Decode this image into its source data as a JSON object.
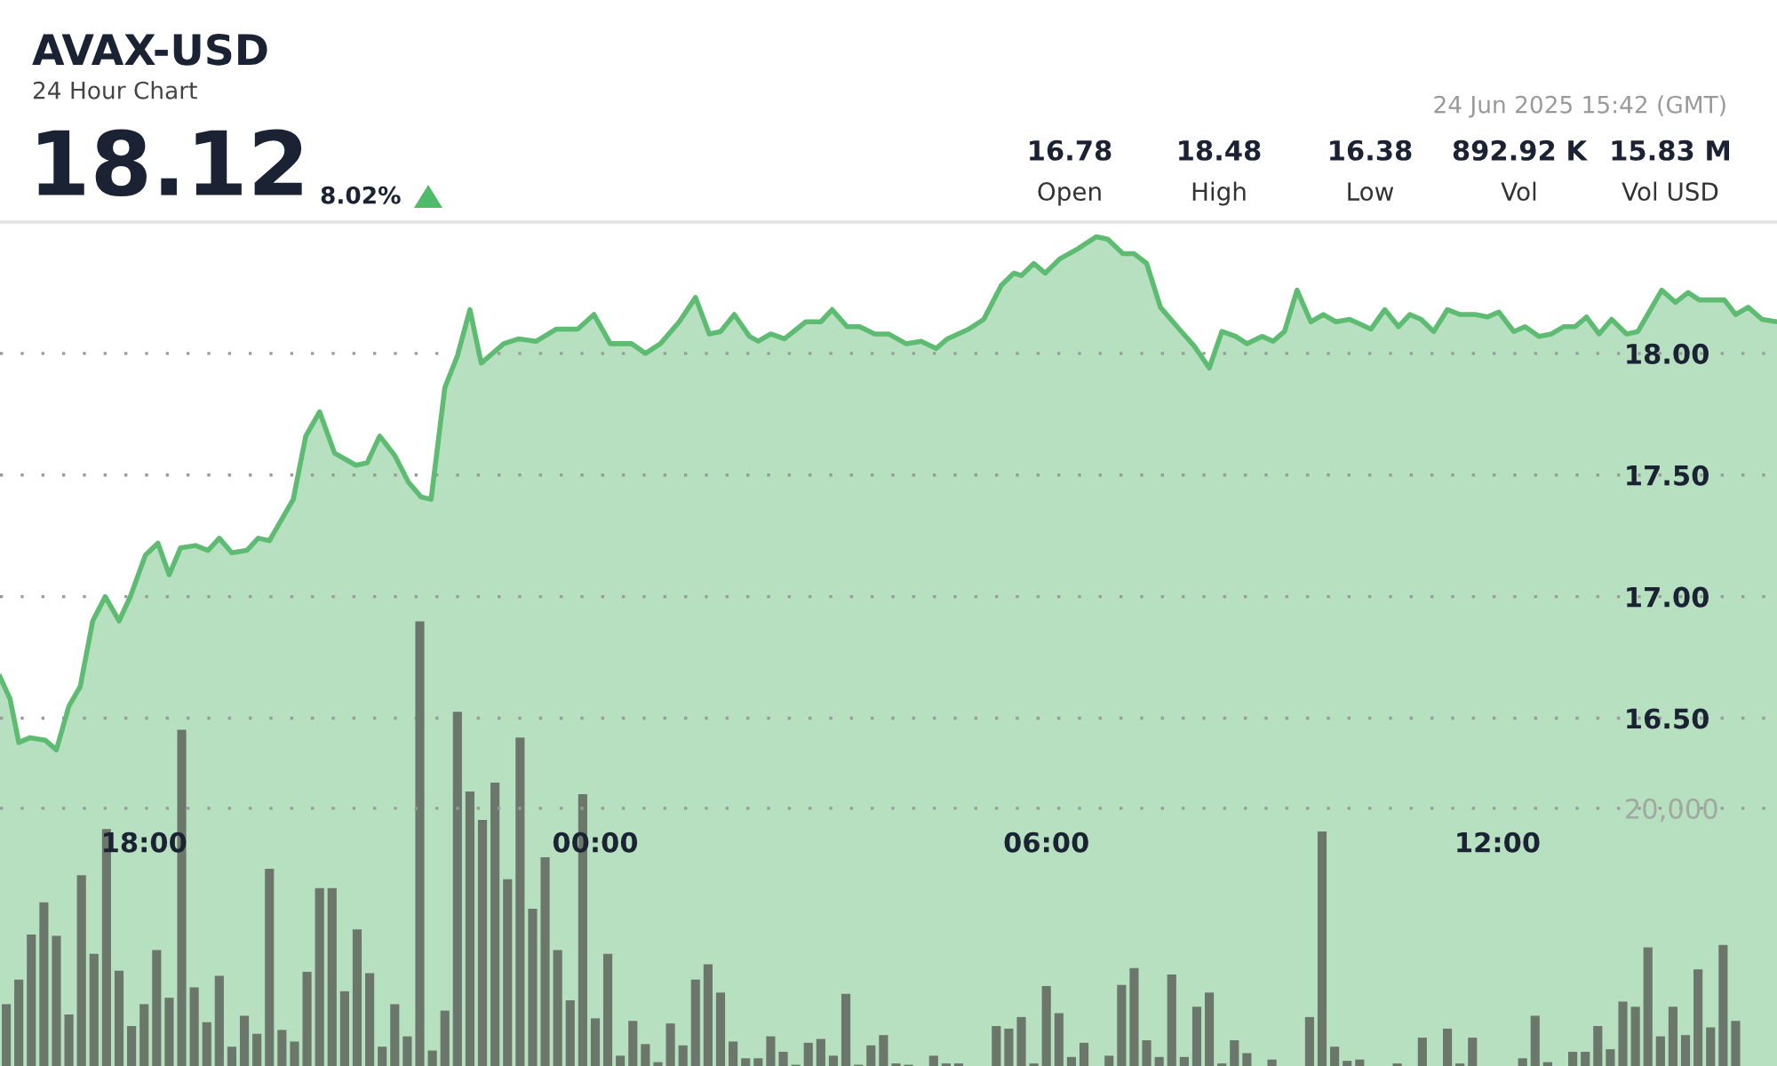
{
  "chart_data": {
    "type": "area",
    "title": "AVAX-USD",
    "subtitle": "24 Hour Chart",
    "annotations": [
      "18.12",
      "8.02%",
      "24 Jun 2025 15:42 (GMT)",
      "16.78",
      "Open",
      "18.48",
      "High",
      "16.38",
      "Low",
      "892.92 K",
      "Vol",
      "15.83 M",
      "Vol USD"
    ],
    "xlim": [
      "2025-06-23T16:05",
      "2025-06-24T15:43"
    ],
    "xticks": [
      {
        "value": "2025-06-23T18:00",
        "label": "18:00"
      },
      {
        "value": "2025-06-24T00:00",
        "label": "00:00"
      },
      {
        "value": "2025-06-24T06:00",
        "label": "06:00"
      },
      {
        "value": "2025-06-24T12:00",
        "label": "12:00"
      }
    ],
    "ylim": [
      15.07,
      18.54
    ],
    "yticks": [
      {
        "value": 16.5,
        "label": "16.50"
      },
      {
        "value": 17,
        "label": "17.00"
      },
      {
        "value": 17.5,
        "label": "17.50"
      },
      {
        "value": 18,
        "label": "18.00"
      }
    ],
    "y2lim": [
      0,
      65500
    ],
    "y2ticks": [
      {
        "value": 20000,
        "label": "20,000"
      }
    ],
    "grid": "y",
    "series": [
      {
        "color": "#5dbb72",
        "x": [
          "2025-06-23T16:05",
          "2025-06-23T16:13",
          "2025-06-23T16:20",
          "2025-06-23T16:29",
          "2025-06-23T16:41",
          "2025-06-23T16:50",
          "2025-06-23T17:00",
          "2025-06-23T17:09",
          "2025-06-23T17:19",
          "2025-06-23T17:29",
          "2025-06-23T17:40",
          "2025-06-23T17:49",
          "2025-06-23T18:01",
          "2025-06-23T18:11",
          "2025-06-23T18:20",
          "2025-06-23T18:29",
          "2025-06-23T18:41",
          "2025-06-23T18:51",
          "2025-06-23T19:00",
          "2025-06-23T19:10",
          "2025-06-23T19:22",
          "2025-06-23T19:31",
          "2025-06-23T19:40",
          "2025-06-23T19:50",
          "2025-06-23T19:59",
          "2025-06-23T20:09",
          "2025-06-23T20:20",
          "2025-06-23T20:32",
          "2025-06-23T20:49",
          "2025-06-23T20:58",
          "2025-06-23T21:08",
          "2025-06-23T21:20",
          "2025-06-23T21:31",
          "2025-06-23T21:41",
          "2025-06-23T21:49",
          "2025-06-23T22:00",
          "2025-06-23T22:10",
          "2025-06-23T22:20",
          "2025-06-23T22:29",
          "2025-06-23T22:47",
          "2025-06-23T22:59",
          "2025-06-23T23:13",
          "2025-06-23T23:29",
          "2025-06-23T23:46",
          "2025-06-23T23:59",
          "2025-06-24T00:12",
          "2025-06-24T00:29",
          "2025-06-24T00:40",
          "2025-06-24T00:52",
          "2025-06-24T01:07",
          "2025-06-24T01:20",
          "2025-06-24T01:31",
          "2025-06-24T01:40",
          "2025-06-24T01:51",
          "2025-06-24T02:03",
          "2025-06-24T02:10",
          "2025-06-24T02:20",
          "2025-06-24T02:31",
          "2025-06-24T02:48",
          "2025-06-24T03:00",
          "2025-06-24T03:09",
          "2025-06-24T03:21",
          "2025-06-24T03:31",
          "2025-06-24T03:43",
          "2025-06-24T03:54",
          "2025-06-24T04:08",
          "2025-06-24T04:20",
          "2025-06-24T04:32",
          "2025-06-24T04:41",
          "2025-06-24T04:58",
          "2025-06-24T05:10",
          "2025-06-24T05:24",
          "2025-06-24T05:34",
          "2025-06-24T05:40",
          "2025-06-24T05:50",
          "2025-06-24T05:59",
          "2025-06-24T06:11",
          "2025-06-24T06:25",
          "2025-06-24T06:40",
          "2025-06-24T06:49",
          "2025-06-24T07:01",
          "2025-06-24T07:10",
          "2025-06-24T07:20",
          "2025-06-24T07:31",
          "2025-06-24T07:46",
          "2025-06-24T07:58",
          "2025-06-24T08:10",
          "2025-06-24T08:20",
          "2025-06-24T08:31",
          "2025-06-24T08:40",
          "2025-06-24T08:52",
          "2025-06-24T09:01",
          "2025-06-24T09:10",
          "2025-06-24T09:20",
          "2025-06-24T09:31",
          "2025-06-24T09:41",
          "2025-06-24T09:51",
          "2025-06-24T10:02",
          "2025-06-24T10:19",
          "2025-06-24T10:30",
          "2025-06-24T10:41",
          "2025-06-24T10:50",
          "2025-06-24T10:59",
          "2025-06-24T11:09",
          "2025-06-24T11:20",
          "2025-06-24T11:30",
          "2025-06-24T11:42",
          "2025-06-24T11:52",
          "2025-06-24T12:01",
          "2025-06-24T12:13",
          "2025-06-24T12:22",
          "2025-06-24T12:33",
          "2025-06-24T12:43",
          "2025-06-24T12:53",
          "2025-06-24T13:02",
          "2025-06-24T13:11",
          "2025-06-24T13:21",
          "2025-06-24T13:31",
          "2025-06-24T13:43",
          "2025-06-24T13:52",
          "2025-06-24T14:11",
          "2025-06-24T14:22",
          "2025-06-24T14:32",
          "2025-06-24T14:41",
          "2025-06-24T15:01",
          "2025-06-24T15:10",
          "2025-06-24T15:20",
          "2025-06-24T15:31",
          "2025-06-24T15:43"
        ],
        "values": [
          16.67,
          16.58,
          16.4,
          16.42,
          16.41,
          16.37,
          16.55,
          16.63,
          16.9,
          17.0,
          16.9,
          17.0,
          17.17,
          17.22,
          17.09,
          17.2,
          17.21,
          17.19,
          17.24,
          17.18,
          17.19,
          17.24,
          17.23,
          17.32,
          17.4,
          17.66,
          17.76,
          17.59,
          17.54,
          17.55,
          17.66,
          17.58,
          17.47,
          17.41,
          17.4,
          17.86,
          17.99,
          18.18,
          17.96,
          18.04,
          18.06,
          18.05,
          18.1,
          18.1,
          18.16,
          18.04,
          18.04,
          18.0,
          18.04,
          18.13,
          18.23,
          18.08,
          18.09,
          18.16,
          18.07,
          18.05,
          18.08,
          18.06,
          18.13,
          18.13,
          18.18,
          18.11,
          18.11,
          18.08,
          18.08,
          18.04,
          18.05,
          18.02,
          18.06,
          18.1,
          18.14,
          18.28,
          18.33,
          18.32,
          18.37,
          18.33,
          18.39,
          18.43,
          18.48,
          18.47,
          18.41,
          18.41,
          18.37,
          18.19,
          18.1,
          18.03,
          17.94,
          18.09,
          18.07,
          18.04,
          18.07,
          18.05,
          18.09,
          18.26,
          18.13,
          18.16,
          18.13,
          18.14,
          18.1,
          18.18,
          18.11,
          18.16,
          18.14,
          18.09,
          18.18,
          18.16,
          18.16,
          18.15,
          18.17,
          18.09,
          18.11,
          18.07,
          18.08,
          18.11,
          18.11,
          18.15,
          18.08,
          18.14,
          18.08,
          18.09,
          18.26,
          18.21,
          18.25,
          18.22,
          18.22,
          18.16,
          18.19,
          18.14,
          18.13
        ]
      },
      {
        "type": "bar",
        "axis": "y2",
        "color": "#6b776b",
        "x": [
          "2025-06-23T16:10",
          "2025-06-23T16:20",
          "2025-06-23T16:30",
          "2025-06-23T16:40",
          "2025-06-23T16:50",
          "2025-06-23T17:00",
          "2025-06-23T17:10",
          "2025-06-23T17:20",
          "2025-06-23T17:30",
          "2025-06-23T17:40",
          "2025-06-23T17:50",
          "2025-06-23T18:00",
          "2025-06-23T18:10",
          "2025-06-23T18:20",
          "2025-06-23T18:30",
          "2025-06-23T18:40",
          "2025-06-23T18:50",
          "2025-06-23T19:00",
          "2025-06-23T19:10",
          "2025-06-23T19:20",
          "2025-06-23T19:30",
          "2025-06-23T19:40",
          "2025-06-23T19:50",
          "2025-06-23T20:00",
          "2025-06-23T20:10",
          "2025-06-23T20:20",
          "2025-06-23T20:30",
          "2025-06-23T20:40",
          "2025-06-23T20:50",
          "2025-06-23T21:00",
          "2025-06-23T21:10",
          "2025-06-23T21:20",
          "2025-06-23T21:30",
          "2025-06-23T21:40",
          "2025-06-23T21:50",
          "2025-06-23T22:00",
          "2025-06-23T22:10",
          "2025-06-23T22:20",
          "2025-06-23T22:30",
          "2025-06-23T22:40",
          "2025-06-23T22:50",
          "2025-06-23T23:00",
          "2025-06-23T23:10",
          "2025-06-23T23:20",
          "2025-06-23T23:30",
          "2025-06-23T23:40",
          "2025-06-23T23:50",
          "2025-06-24T00:00",
          "2025-06-24T00:10",
          "2025-06-24T00:20",
          "2025-06-24T00:30",
          "2025-06-24T00:40",
          "2025-06-24T00:50",
          "2025-06-24T01:00",
          "2025-06-24T01:10",
          "2025-06-24T01:20",
          "2025-06-24T01:30",
          "2025-06-24T01:40",
          "2025-06-24T01:50",
          "2025-06-24T02:00",
          "2025-06-24T02:10",
          "2025-06-24T02:20",
          "2025-06-24T02:30",
          "2025-06-24T02:40",
          "2025-06-24T02:50",
          "2025-06-24T03:00",
          "2025-06-24T03:10",
          "2025-06-24T03:20",
          "2025-06-24T03:30",
          "2025-06-24T03:40",
          "2025-06-24T03:50",
          "2025-06-24T04:00",
          "2025-06-24T04:10",
          "2025-06-24T04:20",
          "2025-06-24T04:30",
          "2025-06-24T04:40",
          "2025-06-24T04:50",
          "2025-06-24T05:00",
          "2025-06-24T05:10",
          "2025-06-24T05:20",
          "2025-06-24T05:30",
          "2025-06-24T05:40",
          "2025-06-24T05:50",
          "2025-06-24T06:00",
          "2025-06-24T06:10",
          "2025-06-24T06:20",
          "2025-06-24T06:30",
          "2025-06-24T06:40",
          "2025-06-24T06:50",
          "2025-06-24T07:00",
          "2025-06-24T07:10",
          "2025-06-24T07:20",
          "2025-06-24T07:30",
          "2025-06-24T07:40",
          "2025-06-24T07:50",
          "2025-06-24T08:00",
          "2025-06-24T08:10",
          "2025-06-24T08:20",
          "2025-06-24T08:30",
          "2025-06-24T08:40",
          "2025-06-24T08:50",
          "2025-06-24T09:00",
          "2025-06-24T09:10",
          "2025-06-24T09:20",
          "2025-06-24T09:30",
          "2025-06-24T09:40",
          "2025-06-24T09:50",
          "2025-06-24T10:00",
          "2025-06-24T10:10",
          "2025-06-24T10:20",
          "2025-06-24T10:30",
          "2025-06-24T10:40",
          "2025-06-24T10:50",
          "2025-06-24T11:00",
          "2025-06-24T11:10",
          "2025-06-24T11:20",
          "2025-06-24T11:30",
          "2025-06-24T11:40",
          "2025-06-24T11:50",
          "2025-06-24T12:00",
          "2025-06-24T12:10",
          "2025-06-24T12:20",
          "2025-06-24T12:30",
          "2025-06-24T12:40",
          "2025-06-24T12:50",
          "2025-06-24T13:00",
          "2025-06-24T13:10",
          "2025-06-24T13:20",
          "2025-06-24T13:30",
          "2025-06-24T13:40",
          "2025-06-24T13:50",
          "2025-06-24T14:00",
          "2025-06-24T14:10",
          "2025-06-24T14:20",
          "2025-06-24T14:30",
          "2025-06-24T14:40",
          "2025-06-24T14:50",
          "2025-06-24T15:00",
          "2025-06-24T15:10"
        ],
        "values": [
          4800,
          6700,
          10200,
          12700,
          10100,
          4000,
          14800,
          8700,
          18400,
          7400,
          3100,
          4800,
          9000,
          5300,
          26100,
          6100,
          3400,
          7000,
          1500,
          3900,
          2500,
          15300,
          2800,
          1900,
          7300,
          13800,
          13800,
          5800,
          10600,
          7200,
          1500,
          4800,
          2300,
          34500,
          1200,
          4300,
          27500,
          21300,
          19100,
          22000,
          14500,
          25500,
          12200,
          16200,
          9000,
          5100,
          21100,
          3700,
          8700,
          800,
          3500,
          1700,
          300,
          3300,
          1600,
          6700,
          7900,
          5700,
          1900,
          600,
          600,
          2300,
          1100,
          100,
          1800,
          2100,
          800,
          5600,
          100,
          1600,
          2400,
          200,
          100,
          0,
          800,
          200,
          200,
          0,
          0,
          3100,
          2900,
          3800,
          200,
          6200,
          4100,
          700,
          1800,
          0,
          800,
          6300,
          7600,
          2000,
          700,
          7100,
          700,
          4600,
          5700,
          200,
          2000,
          1000,
          0,
          500,
          0,
          0,
          3800,
          18200,
          1500,
          400,
          500,
          0,
          0,
          200,
          0,
          2200,
          0,
          2900,
          200,
          2200,
          0,
          0,
          0,
          600,
          3900,
          300,
          0,
          1100,
          1100,
          3100,
          1300,
          5000,
          4600,
          9200,
          2300,
          4600,
          2400,
          7500,
          3000,
          9400,
          3500
        ]
      }
    ]
  }
}
